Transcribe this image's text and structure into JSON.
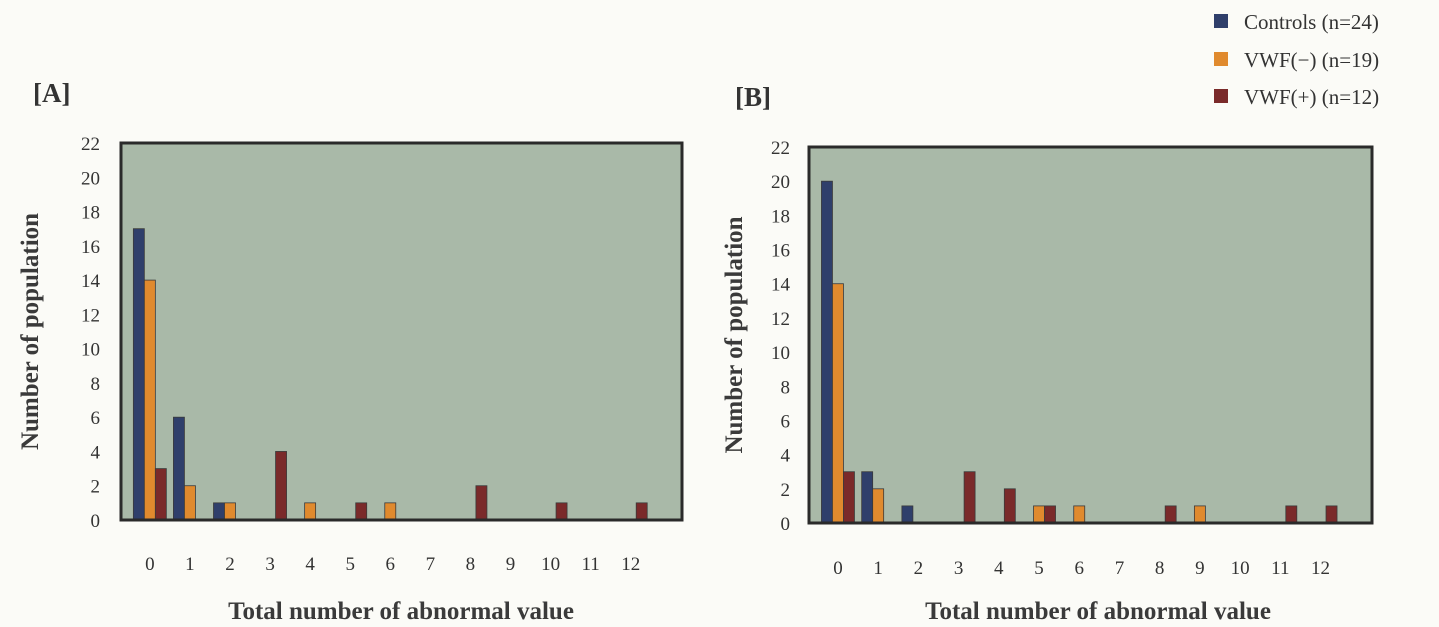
{
  "legend": {
    "placement": "top-right",
    "items": [
      {
        "label": "Controls (n=24)",
        "color": "#2f3f6b"
      },
      {
        "label": "VWF(−)  (n=19)",
        "color": "#e08a2e"
      },
      {
        "label": "VWF(+)  (n=12)",
        "color": "#7a2a2a"
      }
    ]
  },
  "colors": {
    "plot_background": "#a9b9a8",
    "frame": "#2a2a2a"
  },
  "chart_data": [
    {
      "type": "bar",
      "panel_label": "[A]",
      "title": "",
      "xlabel": "Total number of abnormal value",
      "ylabel": "Number of population",
      "ylim": [
        0,
        22
      ],
      "yticks": [
        0,
        2,
        4,
        6,
        8,
        10,
        12,
        14,
        16,
        18,
        20,
        22
      ],
      "grid": false,
      "categories": [
        "0",
        "1",
        "2",
        "3",
        "4",
        "5",
        "6",
        "7",
        "8",
        "9",
        "10",
        "11",
        "12"
      ],
      "series": [
        {
          "name": "Controls (n=24)",
          "values": [
            17,
            6,
            1,
            0,
            0,
            0,
            0,
            0,
            0,
            0,
            0,
            0,
            0
          ]
        },
        {
          "name": "VWF(−)  (n=19)",
          "values": [
            14,
            2,
            1,
            0,
            1,
            0,
            1,
            0,
            0,
            0,
            0,
            0,
            0
          ]
        },
        {
          "name": "VWF(+)  (n=12)",
          "values": [
            3,
            0,
            0,
            4,
            0,
            1,
            0,
            0,
            2,
            0,
            1,
            0,
            1
          ]
        }
      ]
    },
    {
      "type": "bar",
      "panel_label": "[B]",
      "title": "",
      "xlabel": "Total number of abnormal value",
      "ylabel": "Number of population",
      "ylim": [
        0,
        22
      ],
      "yticks": [
        0,
        2,
        4,
        6,
        8,
        10,
        12,
        14,
        16,
        18,
        20,
        22
      ],
      "grid": false,
      "categories": [
        "0",
        "1",
        "2",
        "3",
        "4",
        "5",
        "6",
        "7",
        "8",
        "9",
        "10",
        "11",
        "12"
      ],
      "series": [
        {
          "name": "Controls (n=24)",
          "values": [
            20,
            3,
            1,
            0,
            0,
            0,
            0,
            0,
            0,
            0,
            0,
            0,
            0
          ]
        },
        {
          "name": "VWF(−)  (n=19)",
          "values": [
            14,
            2,
            0,
            0,
            0,
            1,
            1,
            0,
            0,
            1,
            0,
            0,
            0
          ]
        },
        {
          "name": "VWF(+)  (n=12)",
          "values": [
            3,
            0,
            0,
            3,
            2,
            1,
            0,
            0,
            1,
            0,
            0,
            1,
            1
          ]
        }
      ]
    }
  ]
}
